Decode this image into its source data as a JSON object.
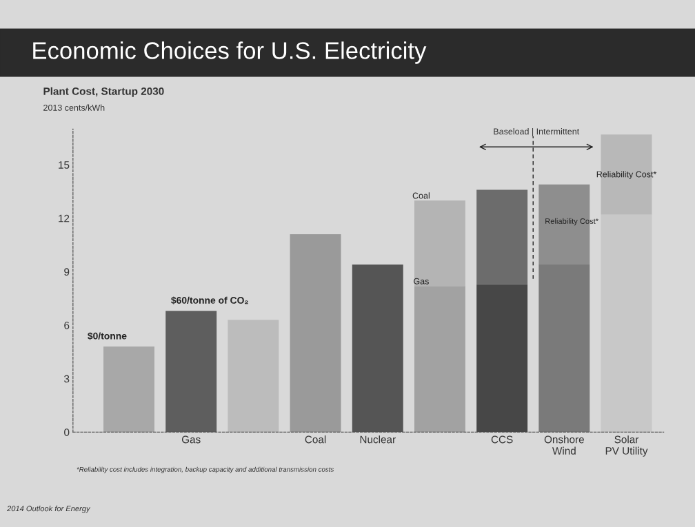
{
  "chart_data": {
    "type": "bar",
    "title": "Economic Choices for U.S. Electricity",
    "subtitle": "Plant Cost, Startup 2030",
    "ylabel": "2013 cents/kWh",
    "categories": [
      null,
      "Gas",
      null,
      "Coal",
      "Nuclear",
      null,
      "CCS",
      "Onshore Wind",
      "Solar PV Utility"
    ],
    "stacked": true,
    "series": [
      {
        "colors": [
          "#a8a8a8",
          "#5e5e5e",
          "#bcbcbc",
          "#9a9a9a",
          "#555555",
          "#a2a2a2",
          "#474747",
          "#7a7a7a",
          "#c8c8c8"
        ],
        "values": [
          4.8,
          6.8,
          6.3,
          11.1,
          9.4,
          8.2,
          8.3,
          9.4,
          12.2
        ]
      },
      {
        "colors": [
          "#b0b0b0",
          "#6a6a6a",
          "#b0b0b0",
          "#6a6a6a",
          "#6a6a6a",
          "#b4b4b4",
          "#6c6c6c",
          "#8e8e8e",
          "#b8b8b8"
        ],
        "values": [
          null,
          null,
          null,
          null,
          null,
          4.8,
          5.3,
          4.5,
          4.5
        ]
      }
    ],
    "ylim": [
      0,
      17
    ],
    "yticks": [
      0,
      3,
      6,
      9,
      12,
      15
    ],
    "grid": false,
    "annotations": [
      "$0/tonne",
      "$60/tonne of CO₂",
      "Coal",
      "Gas",
      "Reliability Cost*",
      "Reliability Cost*",
      "Baseload | Intermittent",
      "*Reliability cost includes integration, backup capacity and additional transmission costs",
      "2014 Outlook for Energy"
    ]
  }
}
